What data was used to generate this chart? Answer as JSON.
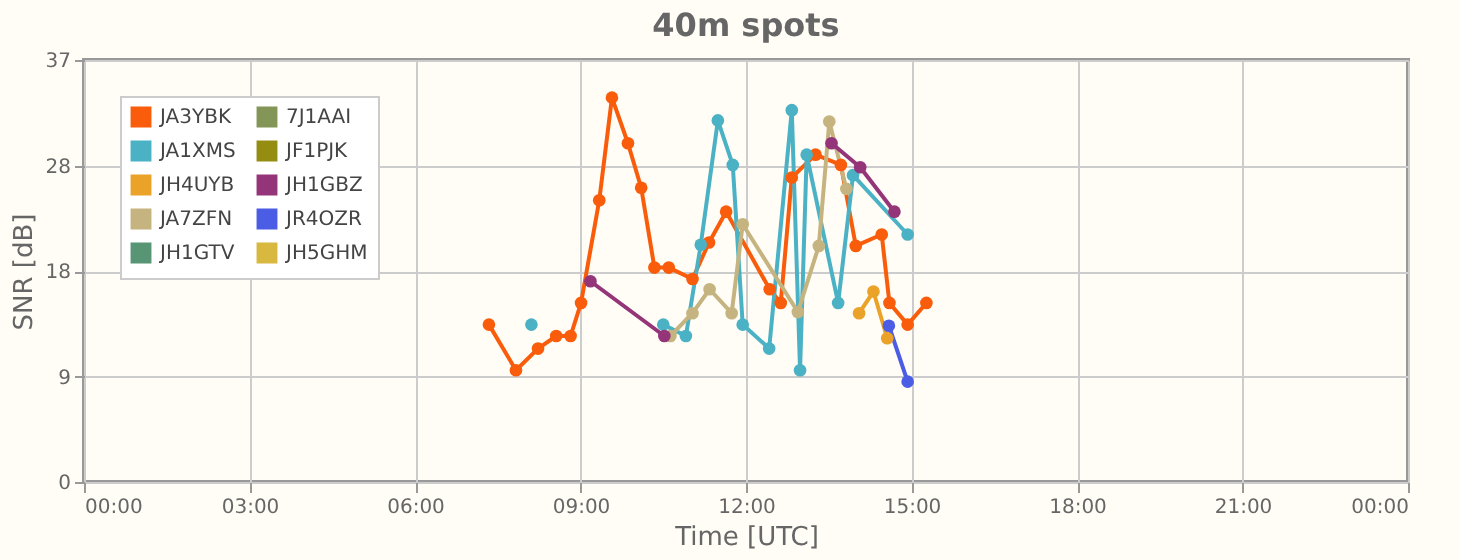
{
  "chart_data": {
    "type": "line",
    "title": "40m spots",
    "xlabel": "Time [UTC]",
    "ylabel": "SNR [dB]",
    "xlim": [
      0,
      24
    ],
    "xticks": [
      {
        "value": 0,
        "label": "00:00"
      },
      {
        "value": 3,
        "label": "03:00"
      },
      {
        "value": 6,
        "label": "06:00"
      },
      {
        "value": 9,
        "label": "09:00"
      },
      {
        "value": 12,
        "label": "12:00"
      },
      {
        "value": 15,
        "label": "15:00"
      },
      {
        "value": 18,
        "label": "18:00"
      },
      {
        "value": 21,
        "label": "21:00"
      },
      {
        "value": 24,
        "label": "00:00"
      }
    ],
    "ylim": [
      0,
      37
    ],
    "yticks": [
      0,
      {
        "value": 9.25,
        "label": "9"
      },
      {
        "value": 18.5,
        "label": "18"
      },
      {
        "value": 27.75,
        "label": "28"
      },
      37
    ],
    "grid": true,
    "legend": "top left",
    "marker": "circle",
    "line_style": "solid",
    "series": [
      {
        "name": "JA3YBK",
        "color": "#f95c0b",
        "x": [
          7.34,
          7.83,
          8.23,
          8.56,
          8.82,
          9.01,
          9.34,
          9.57,
          9.86,
          10.1,
          10.34,
          10.6,
          11.03,
          11.33,
          11.64,
          12.43,
          12.63,
          12.83,
          13.26,
          13.72,
          13.99,
          14.46,
          14.6,
          14.93,
          15.27
        ],
        "values": [
          13.8,
          9.8,
          11.7,
          12.8,
          12.8,
          15.7,
          24.7,
          33.7,
          29.7,
          25.8,
          18.8,
          18.8,
          17.8,
          21.0,
          23.7,
          16.9,
          15.7,
          26.7,
          28.7,
          27.8,
          20.7,
          21.7,
          15.7,
          13.8,
          15.7
        ]
      },
      {
        "name": "JA1XMS",
        "color": "#4bb2c5",
        "x": [
          8.11,
          9.3,
          10.5,
          10.91,
          11.18,
          11.49,
          11.76,
          11.94,
          12.42,
          12.83,
          12.98,
          13.1,
          13.67,
          13.94,
          14.93
        ],
        "values": [
          13.8,
          null,
          13.8,
          12.8,
          20.8,
          31.7,
          27.8,
          13.8,
          11.7,
          32.6,
          9.8,
          28.7,
          15.7,
          26.9,
          21.7
        ]
      },
      {
        "name": "JH4UYB",
        "color": "#eaa228",
        "x": [
          14.05,
          14.31,
          14.56
        ],
        "values": [
          14.8,
          16.7,
          12.6
        ]
      },
      {
        "name": "JA7ZFN",
        "color": "#c5b47f",
        "x": [
          10.63,
          11.03,
          11.34,
          11.74,
          11.94,
          12.94,
          13.32,
          13.51,
          13.82
        ],
        "values": [
          12.8,
          14.8,
          16.9,
          14.8,
          22.6,
          14.9,
          20.7,
          31.6,
          25.7
        ]
      },
      {
        "name": "JH1GTV",
        "color": "#579575"
      },
      {
        "name": "7J1AAI",
        "color": "#839557"
      },
      {
        "name": "JF1PJK",
        "color": "#958c12"
      },
      {
        "name": "JH1GBZ",
        "color": "#953579",
        "x": [
          9.18,
          10.52,
          12.0,
          13.55,
          14.07,
          14.69
        ],
        "values": [
          17.6,
          12.8,
          null,
          29.7,
          27.6,
          23.7
        ]
      },
      {
        "name": "JR4OZR",
        "color": "#4b5de4",
        "x": [
          14.59,
          14.93
        ],
        "values": [
          13.7,
          8.8
        ]
      },
      {
        "name": "JH5GHM",
        "color": "#d8b83f"
      }
    ]
  }
}
